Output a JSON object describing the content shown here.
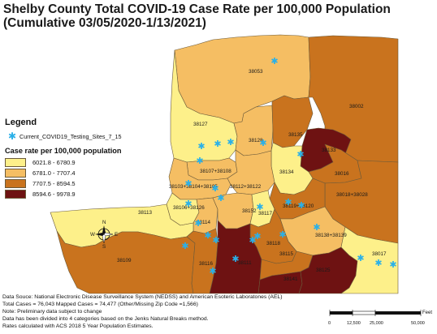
{
  "title": {
    "line1": "Shelby County Total COVID-19 Case Rate per 100,000 Population",
    "line2": "(Cumulative 03/05/2020-1/13/2021)"
  },
  "legend": {
    "title": "Legend",
    "site_label": "Current_COVID19_Testing_Sites_7_15",
    "case_rate_title": "Case rate per 100,000 population",
    "classes": [
      {
        "label": "6021.8 - 6780.9",
        "color": "#fdf08a"
      },
      {
        "label": "6781.0 - 7707.4",
        "color": "#f5be63"
      },
      {
        "label": "7707.5 - 8594.5",
        "color": "#c9731e"
      },
      {
        "label": "8594.6 - 9978.9",
        "color": "#6e1212"
      }
    ]
  },
  "colors": {
    "site_marker": "#2ab0e8",
    "boundary": "#6b5a3a"
  },
  "zip_labels": [
    "38053",
    "38002",
    "38127",
    "38135",
    "38128",
    "38133",
    "38134",
    "38016",
    "38107+38108",
    "38103+38104+38105",
    "38112+38122",
    "38018+38028",
    "38106+38126",
    "38114",
    "38152",
    "38117",
    "38119+38120",
    "38113",
    "38138+38139",
    "38109",
    "38116",
    "38111",
    "38115",
    "38118",
    "38141",
    "38125",
    "38017"
  ],
  "notes": [
    "Data Souce: National Electronic Disease Surveillance System (NEDSS) and American Esoteric Laboratones (AEL)",
    "Total Cases = 76,043 Mapped Cases = 74,477 (Other/Missing Zip Code =1,566)",
    "Note: Preliminary data subject to change",
    "Data has been divided into 4 categories based on the Jenks Natural Breaks method.",
    "Rates calculated with ACS 2018 5 Year Population Estimates."
  ],
  "scale": {
    "labels": [
      "0",
      "12,500",
      "25,000",
      "50,000"
    ],
    "unit": "Feet"
  },
  "compass": {
    "north": "N",
    "south": "S",
    "east": "E",
    "west": "W"
  }
}
